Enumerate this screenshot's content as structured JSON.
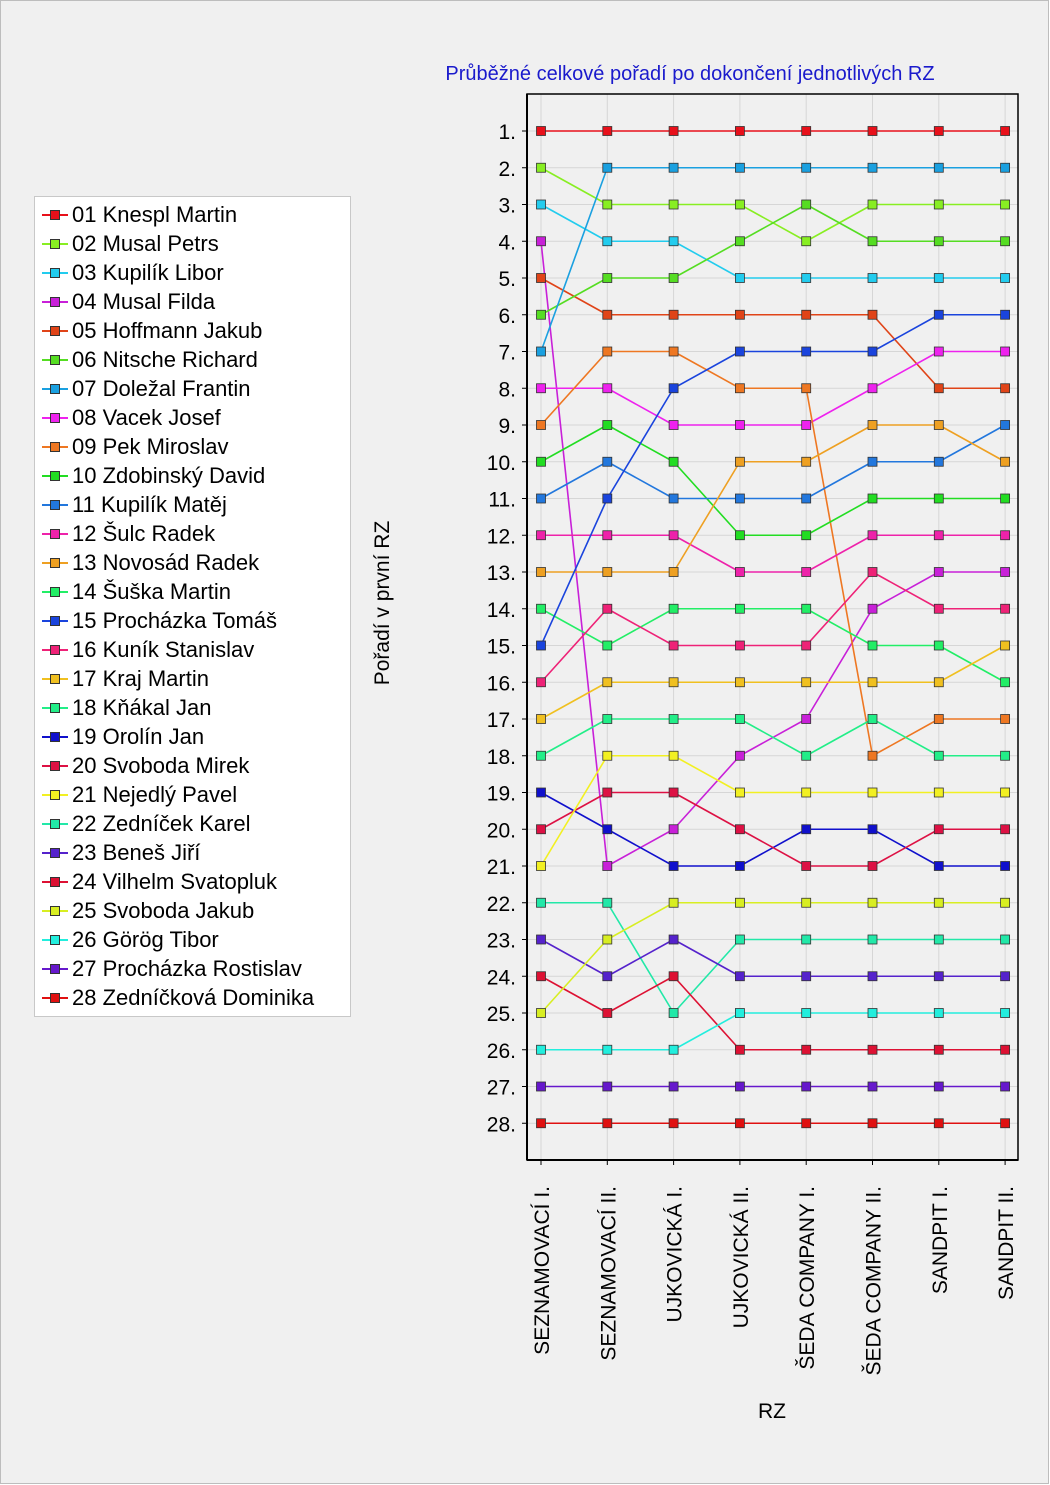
{
  "chart_data": {
    "type": "line",
    "title": "Průběžné celkové pořadí po dokončení jednotlivých RZ",
    "xlabel": "RZ",
    "ylabel": "Pořadí v první RZ",
    "categories": [
      "SEZNAMOVACÍ I.",
      "SEZNAMOVACÍ II.",
      "UJKOVICKÁ I.",
      "UJKOVICKÁ II.",
      "ŠEDA COMPANY I.",
      "ŠEDA COMPANY II.",
      "SANDPIT I.",
      "SANDPIT II."
    ],
    "y_tick_labels": [
      "1.",
      "2.",
      "3.",
      "4.",
      "5.",
      "6.",
      "7.",
      "8.",
      "9.",
      "10.",
      "11.",
      "12.",
      "13.",
      "14.",
      "15.",
      "16.",
      "17.",
      "18.",
      "19.",
      "20.",
      "21.",
      "22.",
      "23.",
      "24.",
      "25.",
      "26.",
      "27.",
      "28."
    ],
    "ylim": [
      28,
      1
    ],
    "y_inverted": true,
    "grid": true,
    "legend_position": "left",
    "series": [
      {
        "name": "01 Knespl Martin",
        "color": "#e8101a",
        "values": [
          1,
          1,
          1,
          1,
          1,
          1,
          1,
          1
        ]
      },
      {
        "name": "02 Musal Petrs",
        "color": "#88ee22",
        "values": [
          2,
          3,
          3,
          3,
          4,
          3,
          3,
          3
        ]
      },
      {
        "name": "03 Kupilík Libor",
        "color": "#22ccee",
        "values": [
          3,
          4,
          4,
          5,
          5,
          5,
          5,
          5
        ]
      },
      {
        "name": "04 Musal Filda",
        "color": "#c820d8",
        "values": [
          4,
          21,
          20,
          18,
          17,
          14,
          13,
          13
        ]
      },
      {
        "name": "05 Hoffmann Jakub",
        "color": "#e04418",
        "values": [
          5,
          6,
          6,
          6,
          6,
          6,
          8,
          8
        ]
      },
      {
        "name": "06 Nitsche Richard",
        "color": "#55dd22",
        "values": [
          6,
          5,
          5,
          4,
          3,
          4,
          4,
          4
        ]
      },
      {
        "name": "07 Doležal Frantin",
        "color": "#1aa0e0",
        "values": [
          7,
          2,
          2,
          2,
          2,
          2,
          2,
          2
        ]
      },
      {
        "name": "08 Vacek Josef",
        "color": "#ee22ee",
        "values": [
          8,
          8,
          9,
          9,
          9,
          8,
          7,
          7
        ]
      },
      {
        "name": "09 Pek Miroslav",
        "color": "#ee7722",
        "values": [
          9,
          7,
          7,
          8,
          8,
          18,
          17,
          17
        ]
      },
      {
        "name": "10 Zdobinský David",
        "color": "#22dd22",
        "values": [
          10,
          9,
          10,
          12,
          12,
          11,
          11,
          11
        ]
      },
      {
        "name": "11 Kupilík Matěj",
        "color": "#2277dd",
        "values": [
          11,
          10,
          11,
          11,
          11,
          10,
          10,
          9
        ]
      },
      {
        "name": "12 Šulc Radek",
        "color": "#ee22aa",
        "values": [
          12,
          12,
          12,
          13,
          13,
          12,
          12,
          12
        ]
      },
      {
        "name": "13 Novosád Radek",
        "color": "#eea022",
        "values": [
          13,
          13,
          13,
          10,
          10,
          9,
          9,
          10
        ]
      },
      {
        "name": "14 Šuška Martin",
        "color": "#22ee66",
        "values": [
          14,
          15,
          14,
          14,
          14,
          15,
          15,
          16
        ]
      },
      {
        "name": "15 Procházka Tomáš",
        "color": "#1a44dd",
        "values": [
          15,
          11,
          8,
          7,
          7,
          7,
          6,
          6
        ]
      },
      {
        "name": "16 Kuník Stanislav",
        "color": "#ee2277",
        "values": [
          16,
          14,
          15,
          15,
          15,
          13,
          14,
          14
        ]
      },
      {
        "name": "17 Kraj Martin",
        "color": "#f0c020",
        "values": [
          17,
          16,
          16,
          16,
          16,
          16,
          16,
          15
        ]
      },
      {
        "name": "18 Kňákal Jan",
        "color": "#22ee88",
        "values": [
          18,
          17,
          17,
          17,
          18,
          17,
          18,
          18
        ]
      },
      {
        "name": "19 Orolín Jan",
        "color": "#1010cc",
        "values": [
          19,
          20,
          21,
          21,
          20,
          20,
          21,
          21
        ]
      },
      {
        "name": "20 Svoboda Mirek",
        "color": "#dd1144",
        "values": [
          20,
          19,
          19,
          20,
          21,
          21,
          20,
          20
        ]
      },
      {
        "name": "21 Nejedlý Pavel",
        "color": "#f2f022",
        "values": [
          21,
          18,
          18,
          19,
          19,
          19,
          19,
          19
        ]
      },
      {
        "name": "22 Zedníček Karel",
        "color": "#22e8a8",
        "values": [
          22,
          22,
          25,
          23,
          23,
          23,
          23,
          23
        ]
      },
      {
        "name": "23 Beneš Jiří",
        "color": "#5522cc",
        "values": [
          23,
          24,
          23,
          24,
          24,
          24,
          24,
          24
        ]
      },
      {
        "name": "24 Vilhelm Svatopluk",
        "color": "#dd1133",
        "values": [
          24,
          25,
          24,
          26,
          26,
          26,
          26,
          26
        ]
      },
      {
        "name": "25 Svoboda Jakub",
        "color": "#d8ee22",
        "values": [
          25,
          23,
          22,
          22,
          22,
          22,
          22,
          22
        ]
      },
      {
        "name": "26 Görög Tibor",
        "color": "#22eedd",
        "values": [
          26,
          26,
          26,
          25,
          25,
          25,
          25,
          25
        ]
      },
      {
        "name": "27 Procházka Rostislav",
        "color": "#6618cc",
        "values": [
          27,
          27,
          27,
          27,
          27,
          27,
          27,
          27
        ]
      },
      {
        "name": "28 Zedníčková Dominika",
        "color": "#e01010",
        "values": [
          28,
          28,
          28,
          28,
          28,
          28,
          28,
          28
        ]
      }
    ]
  },
  "colors": {
    "title": "#1a1acc",
    "text": "#000000",
    "plot_background": "#f0f0f0",
    "grid": "#d6d6d6"
  }
}
